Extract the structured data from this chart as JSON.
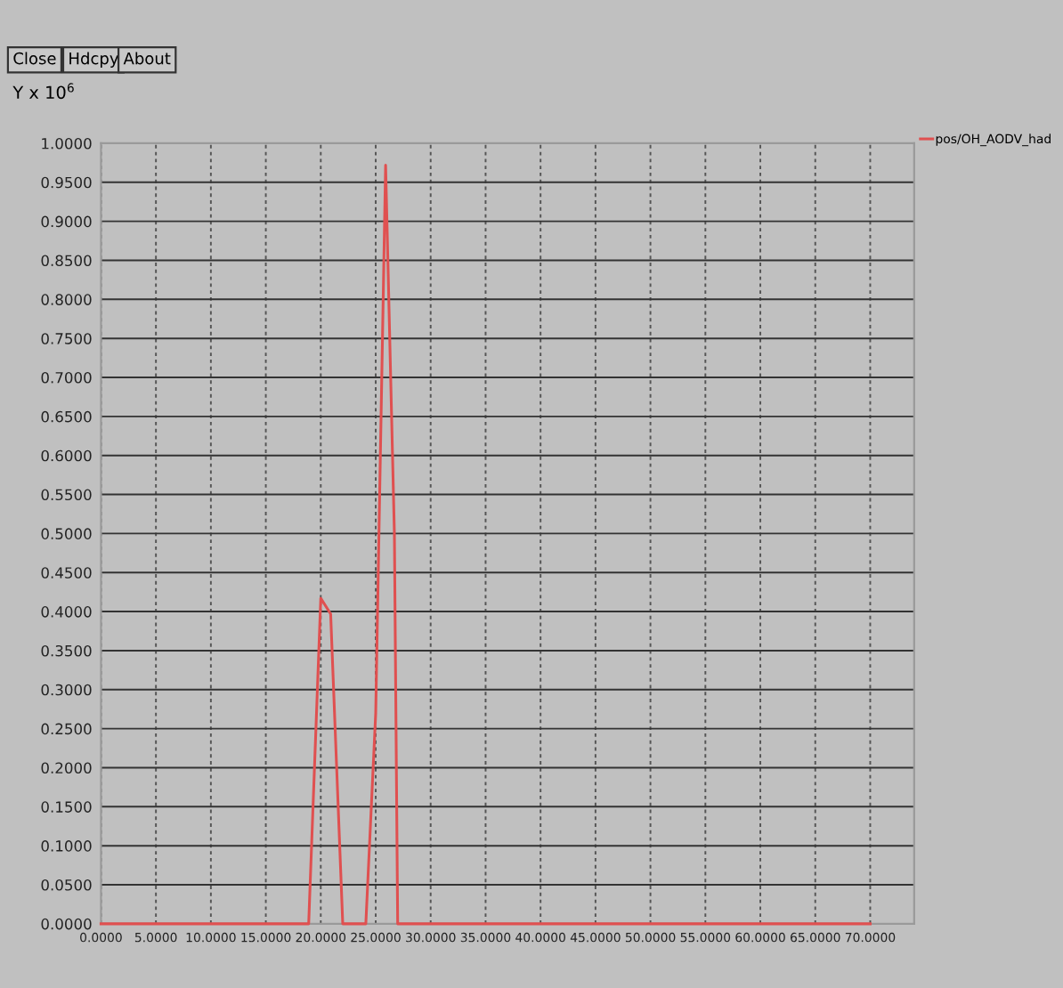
{
  "chart_data": {
    "type": "line",
    "ylabel": "Y x 10$^{6}$",
    "annotations": [
      "Close",
      "Hdcpy",
      "About"
    ],
    "x": [
      0,
      18.9,
      20.0,
      20.9,
      22.0,
      24.1,
      25.0,
      25.9,
      26.7,
      27.0,
      70
    ],
    "series": [
      {
        "name": "pos/OH_AODV_had",
        "color": "#e05050",
        "values": [
          0,
          0,
          0.417,
          0.397,
          0,
          0,
          0.27,
          0.972,
          0.5,
          0,
          0
        ]
      }
    ],
    "xlim": [
      0,
      74
    ],
    "ylim": [
      0,
      1
    ],
    "xticks": [
      {
        "value": 0,
        "label": "0.0000"
      },
      {
        "value": 5,
        "label": "5.0000"
      },
      {
        "value": 10,
        "label": "10.0000"
      },
      {
        "value": 15,
        "label": "15.0000"
      },
      {
        "value": 20,
        "label": "20.0000"
      },
      {
        "value": 25,
        "label": "25.0000"
      },
      {
        "value": 30,
        "label": "30.0000"
      },
      {
        "value": 35,
        "label": "35.0000"
      },
      {
        "value": 40,
        "label": "40.0000"
      },
      {
        "value": 45,
        "label": "45.0000"
      },
      {
        "value": 50,
        "label": "50.0000"
      },
      {
        "value": 55,
        "label": "55.0000"
      },
      {
        "value": 60,
        "label": "60.0000"
      },
      {
        "value": 65,
        "label": "65.0000"
      },
      {
        "value": 70,
        "label": "70.0000"
      }
    ],
    "yticks": [
      {
        "value": 0,
        "label": "0.0000"
      },
      {
        "value": 0.05,
        "label": "0.0500"
      },
      {
        "value": 0.1,
        "label": "0.1000"
      },
      {
        "value": 0.15,
        "label": "0.1500"
      },
      {
        "value": 0.2,
        "label": "0.2000"
      },
      {
        "value": 0.25,
        "label": "0.2500"
      },
      {
        "value": 0.3,
        "label": "0.3000"
      },
      {
        "value": 0.35,
        "label": "0.3500"
      },
      {
        "value": 0.4,
        "label": "0.4000"
      },
      {
        "value": 0.45,
        "label": "0.4500"
      },
      {
        "value": 0.5,
        "label": "0.5000"
      },
      {
        "value": 0.55,
        "label": "0.5500"
      },
      {
        "value": 0.6,
        "label": "0.6000"
      },
      {
        "value": 0.65,
        "label": "0.6500"
      },
      {
        "value": 0.7,
        "label": "0.7000"
      },
      {
        "value": 0.75,
        "label": "0.7500"
      },
      {
        "value": 0.8,
        "label": "0.8000"
      },
      {
        "value": 0.85,
        "label": "0.8500"
      },
      {
        "value": 0.9,
        "label": "0.9000"
      },
      {
        "value": 0.95,
        "label": "0.9500"
      },
      {
        "value": 1,
        "label": "1.0000"
      }
    ],
    "grid": true,
    "legend": "top right"
  }
}
